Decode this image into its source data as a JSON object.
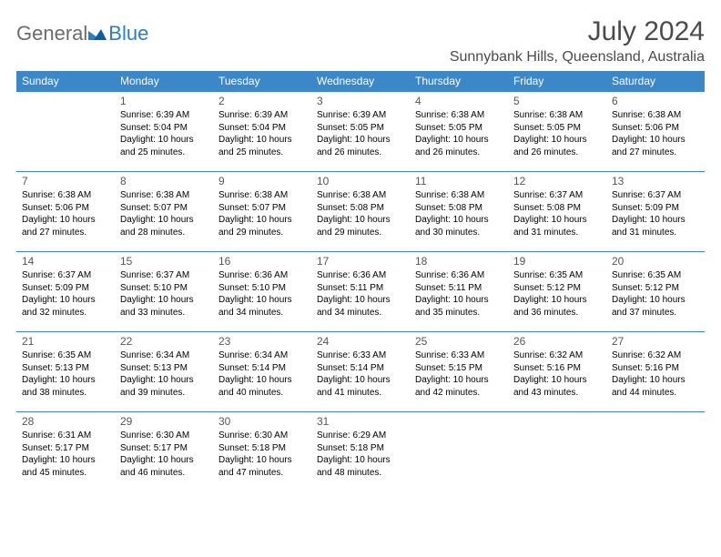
{
  "brand": {
    "part1": "General",
    "part2": "Blue"
  },
  "title": "July 2024",
  "location": "Sunnybank Hills, Queensland, Australia",
  "colors": {
    "header_bg": "#3b87c8",
    "header_text": "#ffffff",
    "row_border": "#3b87c8",
    "logo_gray": "#6b6b6b",
    "logo_blue": "#2a7fbf",
    "title_color": "#4a4a4a"
  },
  "weekdays": [
    "Sunday",
    "Monday",
    "Tuesday",
    "Wednesday",
    "Thursday",
    "Friday",
    "Saturday"
  ],
  "start_offset": 1,
  "days": [
    {
      "n": "1",
      "sunrise": "6:39 AM",
      "sunset": "5:04 PM",
      "daylight": "10 hours and 25 minutes."
    },
    {
      "n": "2",
      "sunrise": "6:39 AM",
      "sunset": "5:04 PM",
      "daylight": "10 hours and 25 minutes."
    },
    {
      "n": "3",
      "sunrise": "6:39 AM",
      "sunset": "5:05 PM",
      "daylight": "10 hours and 26 minutes."
    },
    {
      "n": "4",
      "sunrise": "6:38 AM",
      "sunset": "5:05 PM",
      "daylight": "10 hours and 26 minutes."
    },
    {
      "n": "5",
      "sunrise": "6:38 AM",
      "sunset": "5:05 PM",
      "daylight": "10 hours and 26 minutes."
    },
    {
      "n": "6",
      "sunrise": "6:38 AM",
      "sunset": "5:06 PM",
      "daylight": "10 hours and 27 minutes."
    },
    {
      "n": "7",
      "sunrise": "6:38 AM",
      "sunset": "5:06 PM",
      "daylight": "10 hours and 27 minutes."
    },
    {
      "n": "8",
      "sunrise": "6:38 AM",
      "sunset": "5:07 PM",
      "daylight": "10 hours and 28 minutes."
    },
    {
      "n": "9",
      "sunrise": "6:38 AM",
      "sunset": "5:07 PM",
      "daylight": "10 hours and 29 minutes."
    },
    {
      "n": "10",
      "sunrise": "6:38 AM",
      "sunset": "5:08 PM",
      "daylight": "10 hours and 29 minutes."
    },
    {
      "n": "11",
      "sunrise": "6:38 AM",
      "sunset": "5:08 PM",
      "daylight": "10 hours and 30 minutes."
    },
    {
      "n": "12",
      "sunrise": "6:37 AM",
      "sunset": "5:08 PM",
      "daylight": "10 hours and 31 minutes."
    },
    {
      "n": "13",
      "sunrise": "6:37 AM",
      "sunset": "5:09 PM",
      "daylight": "10 hours and 31 minutes."
    },
    {
      "n": "14",
      "sunrise": "6:37 AM",
      "sunset": "5:09 PM",
      "daylight": "10 hours and 32 minutes."
    },
    {
      "n": "15",
      "sunrise": "6:37 AM",
      "sunset": "5:10 PM",
      "daylight": "10 hours and 33 minutes."
    },
    {
      "n": "16",
      "sunrise": "6:36 AM",
      "sunset": "5:10 PM",
      "daylight": "10 hours and 34 minutes."
    },
    {
      "n": "17",
      "sunrise": "6:36 AM",
      "sunset": "5:11 PM",
      "daylight": "10 hours and 34 minutes."
    },
    {
      "n": "18",
      "sunrise": "6:36 AM",
      "sunset": "5:11 PM",
      "daylight": "10 hours and 35 minutes."
    },
    {
      "n": "19",
      "sunrise": "6:35 AM",
      "sunset": "5:12 PM",
      "daylight": "10 hours and 36 minutes."
    },
    {
      "n": "20",
      "sunrise": "6:35 AM",
      "sunset": "5:12 PM",
      "daylight": "10 hours and 37 minutes."
    },
    {
      "n": "21",
      "sunrise": "6:35 AM",
      "sunset": "5:13 PM",
      "daylight": "10 hours and 38 minutes."
    },
    {
      "n": "22",
      "sunrise": "6:34 AM",
      "sunset": "5:13 PM",
      "daylight": "10 hours and 39 minutes."
    },
    {
      "n": "23",
      "sunrise": "6:34 AM",
      "sunset": "5:14 PM",
      "daylight": "10 hours and 40 minutes."
    },
    {
      "n": "24",
      "sunrise": "6:33 AM",
      "sunset": "5:14 PM",
      "daylight": "10 hours and 41 minutes."
    },
    {
      "n": "25",
      "sunrise": "6:33 AM",
      "sunset": "5:15 PM",
      "daylight": "10 hours and 42 minutes."
    },
    {
      "n": "26",
      "sunrise": "6:32 AM",
      "sunset": "5:16 PM",
      "daylight": "10 hours and 43 minutes."
    },
    {
      "n": "27",
      "sunrise": "6:32 AM",
      "sunset": "5:16 PM",
      "daylight": "10 hours and 44 minutes."
    },
    {
      "n": "28",
      "sunrise": "6:31 AM",
      "sunset": "5:17 PM",
      "daylight": "10 hours and 45 minutes."
    },
    {
      "n": "29",
      "sunrise": "6:30 AM",
      "sunset": "5:17 PM",
      "daylight": "10 hours and 46 minutes."
    },
    {
      "n": "30",
      "sunrise": "6:30 AM",
      "sunset": "5:18 PM",
      "daylight": "10 hours and 47 minutes."
    },
    {
      "n": "31",
      "sunrise": "6:29 AM",
      "sunset": "5:18 PM",
      "daylight": "10 hours and 48 minutes."
    }
  ],
  "labels": {
    "sunrise": "Sunrise: ",
    "sunset": "Sunset: ",
    "daylight": "Daylight: "
  }
}
